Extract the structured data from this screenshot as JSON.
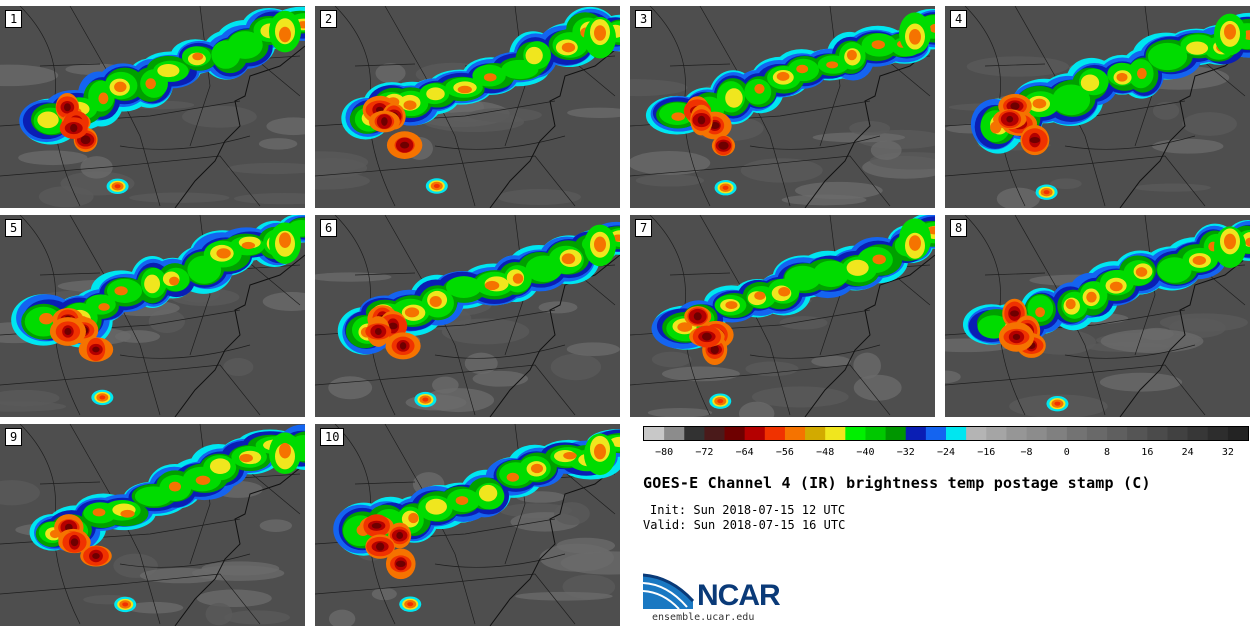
{
  "panels": [
    {
      "label": "1"
    },
    {
      "label": "2"
    },
    {
      "label": "3"
    },
    {
      "label": "4"
    },
    {
      "label": "5"
    },
    {
      "label": "6"
    },
    {
      "label": "7"
    },
    {
      "label": "8"
    },
    {
      "label": "9"
    },
    {
      "label": "10"
    }
  ],
  "colorbar": {
    "colors": [
      "#c8c8c8",
      "#8c8c8c",
      "#323232",
      "#4a1a1a",
      "#6e0000",
      "#b40000",
      "#f03200",
      "#f57300",
      "#d2aa00",
      "#f0e61e",
      "#00f000",
      "#00c800",
      "#009600",
      "#0a1eb4",
      "#1464f0",
      "#00e6f0",
      "#b4b4b4",
      "#a5a5a5",
      "#969696",
      "#8c8c8c",
      "#808080",
      "#737373",
      "#696969",
      "#5f5f5f",
      "#555555",
      "#4b4b4b",
      "#414141",
      "#373737",
      "#2d2d2d",
      "#232323"
    ],
    "tick_labels": [
      "−80",
      "−72",
      "−64",
      "−56",
      "−48",
      "−40",
      "−32",
      "−24",
      "−16",
      "−8",
      "0",
      "8",
      "16",
      "24",
      "32"
    ]
  },
  "title": "GOES-E Channel 4 (IR) brightness temp postage stamp (C)",
  "init": "Init: Sun 2018-07-15 12 UTC",
  "valid": "Valid: Sun 2018-07-15 16 UTC",
  "logo": {
    "text": "NCAR",
    "url": "ensemble.ucar.edu"
  }
}
